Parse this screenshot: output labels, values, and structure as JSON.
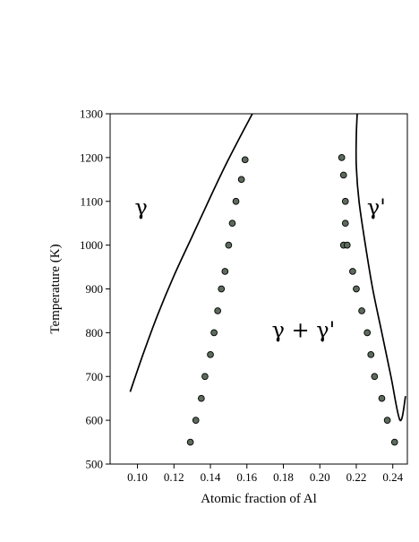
{
  "chart_data": {
    "type": "scatter",
    "title": "",
    "xlabel": "Atomic fraction of Al",
    "ylabel": "Temperature (K)",
    "xlim": [
      0.085,
      0.248
    ],
    "ylim": [
      500,
      1300
    ],
    "xticks": [
      0.1,
      0.12,
      0.14,
      0.16,
      0.18,
      0.2,
      0.22,
      0.24
    ],
    "xtick_labels": [
      "0.10",
      "0.12",
      "0.14",
      "0.16",
      "0.18",
      "0.20",
      "0.22",
      "0.24"
    ],
    "yticks": [
      500,
      600,
      700,
      800,
      900,
      1000,
      1100,
      1200,
      1300
    ],
    "ytick_labels": [
      "500",
      "600",
      "700",
      "800",
      "900",
      "1000",
      "1100",
      "1200",
      "1300"
    ],
    "grid": false,
    "legend": "none",
    "annotations": [
      {
        "text": "γ",
        "x": 0.102,
        "y": 1070
      },
      {
        "text": "γ'",
        "x": 0.231,
        "y": 1070
      },
      {
        "text": "γ + γ'",
        "x": 0.191,
        "y": 790
      }
    ],
    "series": [
      {
        "kind": "line",
        "color": "#000000",
        "x": [
          0.096,
          0.103,
          0.111,
          0.12,
          0.13,
          0.14,
          0.148,
          0.156,
          0.163
        ],
        "y": [
          665,
          750,
          840,
          930,
          1020,
          1110,
          1180,
          1245,
          1300
        ]
      },
      {
        "kind": "line",
        "color": "#000000",
        "x": [
          0.2205,
          0.22,
          0.22,
          0.2215,
          0.225,
          0.229,
          0.234,
          0.239,
          0.244,
          0.247
        ],
        "y": [
          1300,
          1250,
          1180,
          1100,
          1000,
          900,
          800,
          700,
          600,
          655
        ]
      },
      {
        "kind": "scatter",
        "color": "#5c6b5c",
        "x": [
          0.129,
          0.132,
          0.135,
          0.137,
          0.14,
          0.142,
          0.144,
          0.146,
          0.148,
          0.15,
          0.152,
          0.154,
          0.157,
          0.159
        ],
        "y": [
          550,
          600,
          650,
          700,
          750,
          800,
          850,
          900,
          940,
          1000,
          1050,
          1100,
          1150,
          1195
        ]
      },
      {
        "kind": "scatter",
        "color": "#5c6b5c",
        "x": [
          0.212,
          0.213,
          0.214,
          0.214,
          0.213,
          0.215,
          0.218,
          0.22,
          0.223,
          0.226,
          0.228,
          0.23,
          0.234,
          0.237,
          0.241
        ],
        "y": [
          1200,
          1160,
          1100,
          1050,
          1000,
          1000,
          940,
          900,
          850,
          800,
          750,
          700,
          650,
          600,
          550
        ]
      }
    ]
  }
}
